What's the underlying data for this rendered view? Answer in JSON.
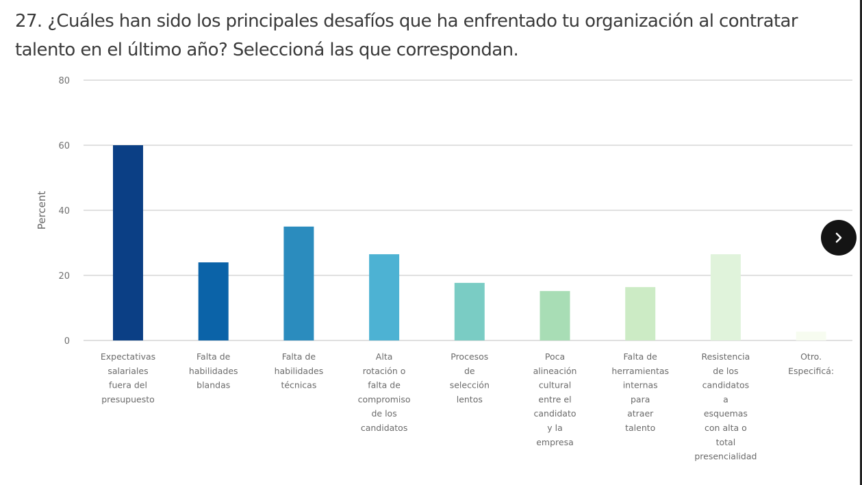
{
  "page": {
    "title": "27. ¿Cuáles han sido los principales desafíos que ha enfrentado tu organización al contratar talento en el último año? Seleccioná las que correspondan."
  },
  "navigation": {
    "next_icon": "chevron-right-icon"
  },
  "chart_data": {
    "type": "bar",
    "title": "",
    "xlabel": "",
    "ylabel": "Percent",
    "ylim": [
      0,
      80
    ],
    "yticks": [
      0,
      20,
      40,
      60,
      80
    ],
    "grid": true,
    "legend": "none",
    "categories": [
      [
        "Expectativas",
        "salariales",
        "fuera del",
        "presupuesto"
      ],
      [
        "Falta de",
        "habilidades",
        "blandas"
      ],
      [
        "Falta de",
        "habilidades",
        "técnicas"
      ],
      [
        "Alta",
        "rotación o",
        "falta de",
        "compromiso",
        "de los",
        "candidatos"
      ],
      [
        "Procesos",
        "de",
        "selección",
        "lentos"
      ],
      [
        "Poca",
        "alineación",
        "cultural",
        "entre el",
        "candidato",
        "y la",
        "empresa"
      ],
      [
        "Falta de",
        "herramientas",
        "internas",
        "para",
        "atraer",
        "talento"
      ],
      [
        "Resistencia",
        "de los",
        "candidatos",
        "a",
        "esquemas",
        "con alta o",
        "total",
        "presencialidad"
      ],
      [
        "Otro.",
        "Especificá:"
      ]
    ],
    "values": [
      60.0,
      24.0,
      35.0,
      26.5,
      17.7,
      15.2,
      16.4,
      26.5,
      2.7
    ],
    "colors": [
      "#0b3f85",
      "#0b63a8",
      "#2b8cbe",
      "#4db2d3",
      "#7accc4",
      "#a8ddb5",
      "#ccebc5",
      "#e0f3db",
      "#f7fcf0"
    ]
  }
}
